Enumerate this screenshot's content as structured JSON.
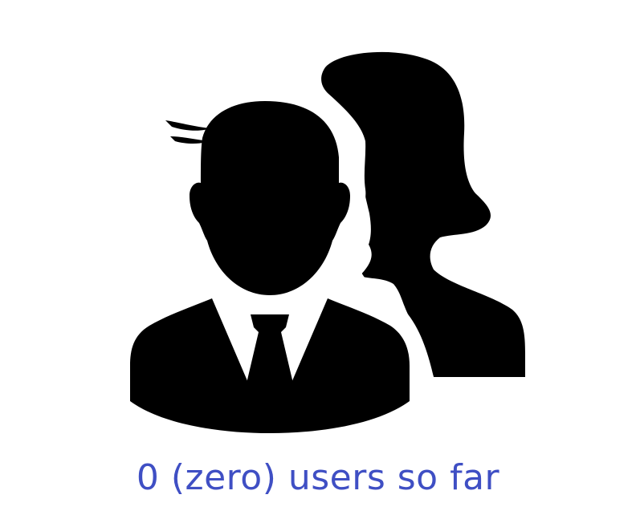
{
  "empty_state": {
    "icon": "users-group-icon",
    "message": "0 (zero) users so far",
    "icon_color": "#000000",
    "message_color": "#3f4fc4",
    "background_color": "#ffffff"
  }
}
